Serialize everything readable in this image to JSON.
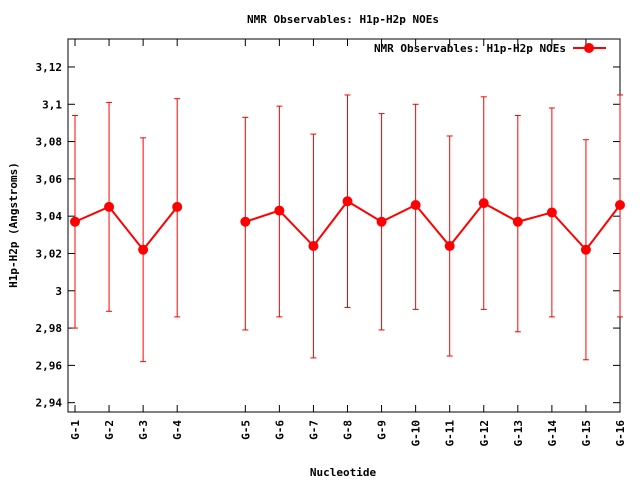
{
  "chart_data": {
    "type": "line",
    "title": "NMR Observables: H1p-H2p NOEs",
    "xlabel": "Nucleotide",
    "ylabel": "H1p-H2p (Angstroms)",
    "ylim": [
      2.935,
      3.135
    ],
    "y_ticks": [
      {
        "value": 2.94,
        "label": "2,94"
      },
      {
        "value": 2.96,
        "label": "2,96"
      },
      {
        "value": 2.98,
        "label": "2,98"
      },
      {
        "value": 3.0,
        "label": "3"
      },
      {
        "value": 3.02,
        "label": "3,02"
      },
      {
        "value": 3.04,
        "label": "3,04"
      },
      {
        "value": 3.06,
        "label": "3,06"
      },
      {
        "value": 3.08,
        "label": "3,08"
      },
      {
        "value": 3.1,
        "label": "3,1"
      },
      {
        "value": 3.12,
        "label": "3,12"
      }
    ],
    "x_positions": [
      1,
      2,
      3,
      4,
      6,
      7,
      8,
      9,
      10,
      11,
      12,
      13,
      14,
      15,
      16,
      17
    ],
    "xlim": [
      1,
      17
    ],
    "categories": [
      "G-1",
      "G-2",
      "G-3",
      "G-4",
      "G-5",
      "G-6",
      "G-7",
      "G-8",
      "G-9",
      "G-10",
      "G-11",
      "G-12",
      "G-13",
      "G-14",
      "G-15",
      "G-16"
    ],
    "legend_position": "top-right",
    "grid": false,
    "color": "#ff0000",
    "series": [
      {
        "name": "NMR Observables: H1p-H2p NOEs",
        "values": [
          3.037,
          3.045,
          3.022,
          3.045,
          3.037,
          3.043,
          3.024,
          3.048,
          3.037,
          3.046,
          3.024,
          3.047,
          3.037,
          3.042,
          3.022,
          3.046
        ],
        "err_low": [
          2.98,
          2.989,
          2.962,
          2.986,
          2.979,
          2.986,
          2.964,
          2.991,
          2.979,
          2.99,
          2.965,
          2.99,
          2.978,
          2.986,
          2.963,
          2.986
        ],
        "err_high": [
          3.094,
          3.101,
          3.082,
          3.103,
          3.093,
          3.099,
          3.084,
          3.105,
          3.095,
          3.1,
          3.083,
          3.104,
          3.094,
          3.098,
          3.081,
          3.105
        ],
        "segments": [
          [
            0,
            3
          ],
          [
            4,
            15
          ]
        ]
      }
    ]
  }
}
